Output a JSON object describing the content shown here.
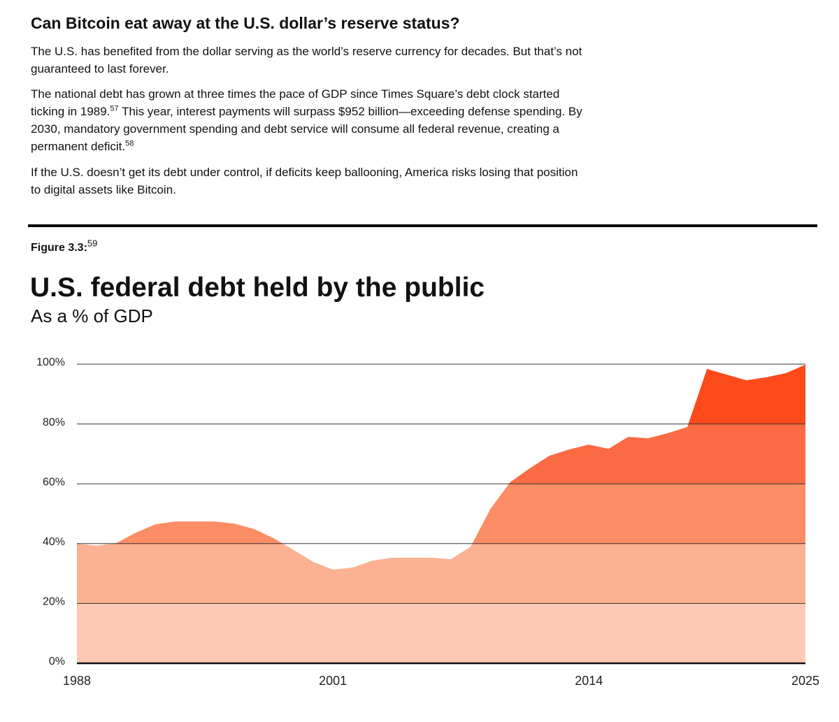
{
  "document": {
    "heading": "Can Bitcoin eat away at the U.S. dollar’s reserve status?",
    "paragraphs": [
      [
        "The U.S. has benefited from the dollar serving as the world’s reserve currency for decades. But that’s not guaranteed to last forever."
      ],
      [
        "The national debt has grown at three times the pace of GDP since Times Square’s debt clock started ticking in 1989.",
        "57",
        " This year, interest payments will surpass $952 billion—exceeding defense spending. By 2030, mandatory government spending and debt service will consume all federal revenue, creating a permanent deficit.",
        "58"
      ],
      [
        "If the U.S. doesn’t get its debt under control, if deficits keep ballooning, America risks losing that position to digital assets like Bitcoin."
      ]
    ],
    "figure": {
      "label": "Figure 3.3:",
      "ref": "59"
    }
  },
  "chart_data": {
    "type": "area",
    "title": "U.S. federal debt held by the public",
    "subtitle": "As a % of GDP",
    "x": [
      1988,
      1989,
      1990,
      1991,
      1992,
      1993,
      1994,
      1995,
      1996,
      1997,
      1998,
      1999,
      2000,
      2001,
      2002,
      2003,
      2004,
      2005,
      2006,
      2007,
      2008,
      2009,
      2010,
      2011,
      2012,
      2013,
      2014,
      2015,
      2016,
      2017,
      2018,
      2019,
      2020,
      2021,
      2022,
      2023,
      2024,
      2025
    ],
    "values": [
      40.0,
      39.3,
      40.2,
      43.7,
      46.5,
      47.4,
      47.4,
      47.4,
      46.7,
      44.9,
      41.8,
      37.9,
      33.9,
      31.3,
      32.0,
      34.3,
      35.3,
      35.3,
      35.3,
      34.8,
      39.0,
      51.6,
      60.5,
      65.2,
      69.4,
      71.5,
      73.1,
      71.7,
      75.7,
      75.2,
      76.9,
      79.0,
      98.4,
      96.5,
      94.6,
      95.6,
      97.0,
      99.8
    ],
    "xlim": [
      1988,
      2025
    ],
    "xticks": [
      1988,
      2001,
      2014,
      2025
    ],
    "ylim": [
      0,
      100
    ],
    "yticks": [
      {
        "value": 0,
        "label": "0%"
      },
      {
        "value": 20,
        "label": "20%"
      },
      {
        "value": 40,
        "label": "40%"
      },
      {
        "value": 60,
        "label": "60%"
      },
      {
        "value": 80,
        "label": "80%"
      },
      {
        "value": 100,
        "label": "100%"
      }
    ],
    "band_colors": [
      "#fdc9b5",
      "#fcb193",
      "#fc8d66",
      "#fc6b43",
      "#fc4a1b"
    ],
    "grid": true
  }
}
